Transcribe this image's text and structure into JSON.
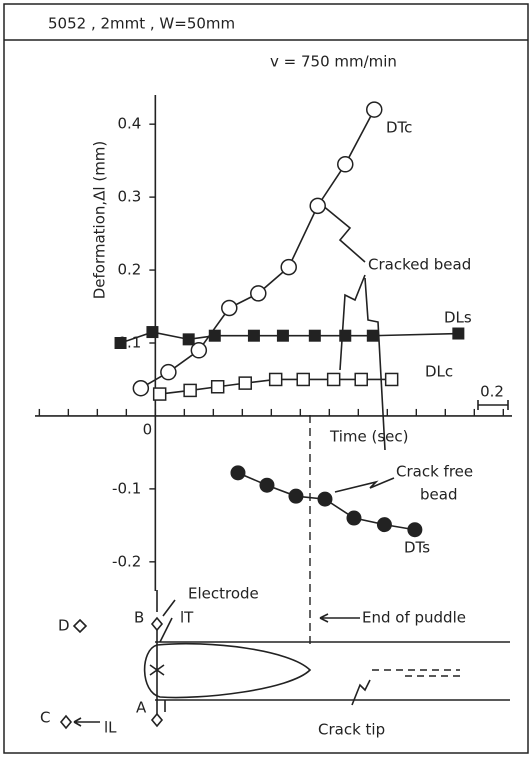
{
  "chart_data": {
    "type": "scatter",
    "title": "5052 , 2mmt , W=50mm",
    "subtitle": "v = 750 mm/min",
    "xlabel": "Time (sec)",
    "ylabel": "Deformation,Δl (mm)",
    "xlim": [
      -0.83,
      2.46
    ],
    "ylim": [
      -0.24,
      0.44
    ],
    "xticks": [
      0
    ],
    "xminorticks": [
      -0.8,
      -0.6,
      -0.4,
      -0.2,
      0.2,
      0.4,
      0.6,
      0.8,
      1.0,
      1.2,
      1.4,
      1.6,
      1.8,
      2.0,
      2.2,
      2.4
    ],
    "yticks": [
      -0.2,
      -0.1,
      0.1,
      0.2,
      0.3,
      0.4
    ],
    "grid": false,
    "scale_label": "0.2",
    "series": [
      {
        "name": "DTc",
        "marker": "circle-open",
        "color": "#222",
        "x": [
          -0.1,
          0.09,
          0.3,
          0.51,
          0.71,
          0.92,
          1.12,
          1.31,
          1.51
        ],
        "values": [
          0.038,
          0.06,
          0.09,
          0.148,
          0.168,
          0.204,
          0.288,
          0.345,
          0.42
        ]
      },
      {
        "name": "DLs",
        "marker": "square-filled",
        "color": "#222",
        "x": [
          -0.24,
          -0.02,
          0.23,
          0.41,
          0.68,
          0.88,
          1.1,
          1.31,
          1.5,
          2.09
        ],
        "values": [
          0.1,
          0.115,
          0.105,
          0.11,
          0.11,
          0.11,
          0.11,
          0.11,
          0.11,
          0.113
        ]
      },
      {
        "name": "DLc",
        "marker": "square-open",
        "color": "#222",
        "x": [
          0.03,
          0.24,
          0.43,
          0.62,
          0.83,
          1.02,
          1.23,
          1.42,
          1.63
        ],
        "values": [
          0.03,
          0.035,
          0.04,
          0.045,
          0.05,
          0.05,
          0.05,
          0.05,
          0.05
        ]
      },
      {
        "name": "DTs",
        "marker": "circle-filled",
        "color": "#222",
        "x": [
          0.57,
          0.77,
          0.97,
          1.17,
          1.37,
          1.58,
          1.79
        ],
        "values": [
          -0.078,
          -0.095,
          -0.11,
          -0.114,
          -0.14,
          -0.149,
          -0.156
        ]
      }
    ],
    "annotations": [
      "Cracked bead",
      "Crack free",
      "bead"
    ]
  },
  "diagram": {
    "labels": [
      "Electrode",
      "End of puddle",
      "Crack tip",
      "D",
      "B",
      "A",
      "C",
      "lT",
      "lL"
    ]
  }
}
